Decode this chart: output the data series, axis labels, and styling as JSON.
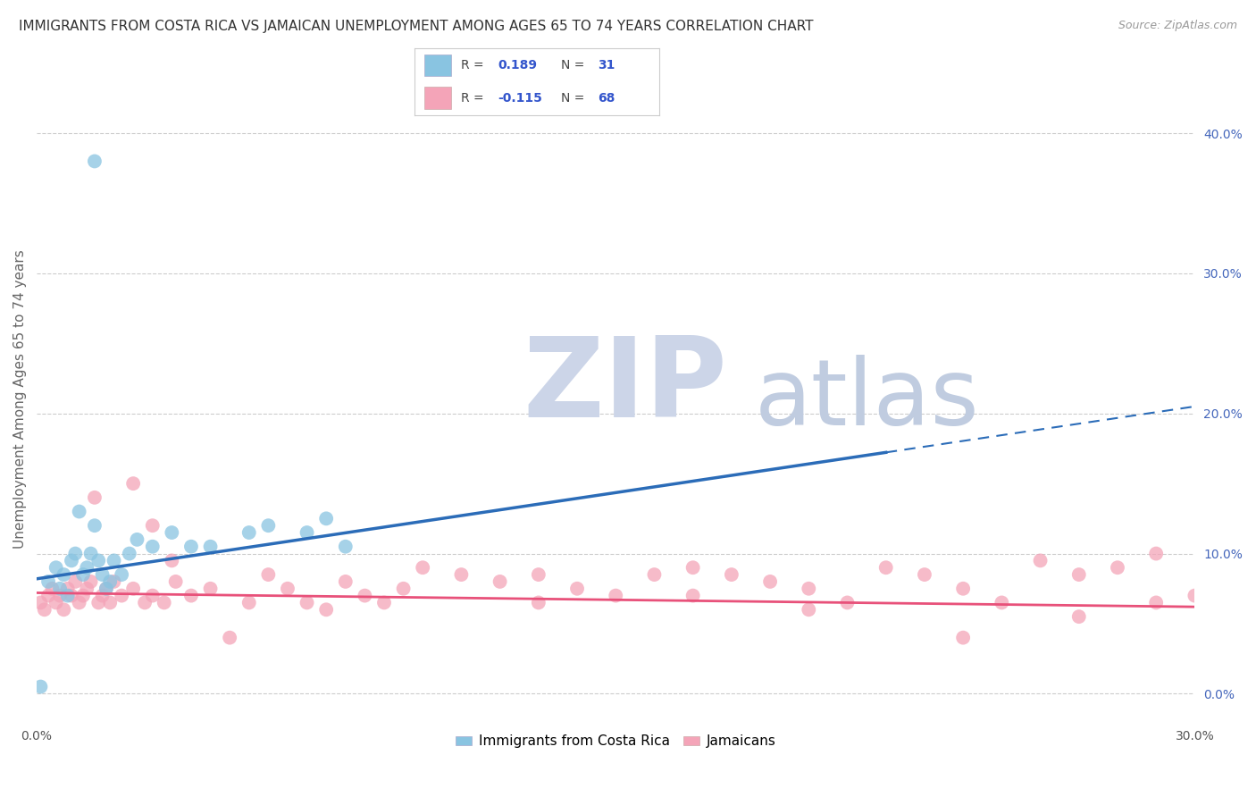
{
  "title": "IMMIGRANTS FROM COSTA RICA VS JAMAICAN UNEMPLOYMENT AMONG AGES 65 TO 74 YEARS CORRELATION CHART",
  "source": "Source: ZipAtlas.com",
  "ylabel": "Unemployment Among Ages 65 to 74 years",
  "xlim": [
    0.0,
    0.3
  ],
  "ylim": [
    -0.02,
    0.44
  ],
  "xtick_positions": [
    0.0,
    0.3
  ],
  "xtick_labels": [
    "0.0%",
    "30.0%"
  ],
  "ytick_positions": [
    0.0,
    0.1,
    0.2,
    0.3,
    0.4
  ],
  "ytick_labels_right": [
    "0.0%",
    "10.0%",
    "20.0%",
    "30.0%",
    "40.0%"
  ],
  "legend_labels": [
    "Immigrants from Costa Rica",
    "Jamaicans"
  ],
  "blue_color": "#89c4e1",
  "pink_color": "#f4a4b8",
  "blue_line_color": "#2b6cb8",
  "pink_line_color": "#e8517a",
  "blue_line_solid_end": 0.22,
  "blue_line_dashed_start": 0.22,
  "blue_scatter_x": [
    0.001,
    0.003,
    0.005,
    0.006,
    0.007,
    0.008,
    0.009,
    0.01,
    0.011,
    0.012,
    0.013,
    0.014,
    0.015,
    0.016,
    0.017,
    0.018,
    0.019,
    0.02,
    0.022,
    0.024,
    0.026,
    0.03,
    0.035,
    0.04,
    0.045,
    0.055,
    0.06,
    0.07,
    0.075,
    0.08,
    0.015
  ],
  "blue_scatter_y": [
    0.005,
    0.08,
    0.09,
    0.075,
    0.085,
    0.07,
    0.095,
    0.1,
    0.13,
    0.085,
    0.09,
    0.1,
    0.12,
    0.095,
    0.085,
    0.075,
    0.08,
    0.095,
    0.085,
    0.1,
    0.11,
    0.105,
    0.115,
    0.105,
    0.105,
    0.115,
    0.12,
    0.115,
    0.125,
    0.105,
    0.38
  ],
  "pink_scatter_x": [
    0.001,
    0.002,
    0.003,
    0.004,
    0.005,
    0.006,
    0.007,
    0.008,
    0.009,
    0.01,
    0.011,
    0.012,
    0.013,
    0.014,
    0.015,
    0.016,
    0.017,
    0.018,
    0.019,
    0.02,
    0.022,
    0.025,
    0.028,
    0.03,
    0.033,
    0.036,
    0.04,
    0.045,
    0.05,
    0.055,
    0.06,
    0.065,
    0.07,
    0.075,
    0.08,
    0.085,
    0.09,
    0.095,
    0.1,
    0.11,
    0.12,
    0.13,
    0.14,
    0.15,
    0.16,
    0.17,
    0.18,
    0.19,
    0.2,
    0.21,
    0.22,
    0.23,
    0.24,
    0.25,
    0.26,
    0.27,
    0.28,
    0.29,
    0.3,
    0.025,
    0.03,
    0.035,
    0.13,
    0.17,
    0.2,
    0.24,
    0.27,
    0.29
  ],
  "pink_scatter_y": [
    0.065,
    0.06,
    0.07,
    0.075,
    0.065,
    0.07,
    0.06,
    0.075,
    0.07,
    0.08,
    0.065,
    0.07,
    0.075,
    0.08,
    0.14,
    0.065,
    0.07,
    0.075,
    0.065,
    0.08,
    0.07,
    0.075,
    0.065,
    0.07,
    0.065,
    0.08,
    0.07,
    0.075,
    0.04,
    0.065,
    0.085,
    0.075,
    0.065,
    0.06,
    0.08,
    0.07,
    0.065,
    0.075,
    0.09,
    0.085,
    0.08,
    0.065,
    0.075,
    0.07,
    0.085,
    0.07,
    0.085,
    0.08,
    0.075,
    0.065,
    0.09,
    0.085,
    0.075,
    0.065,
    0.095,
    0.085,
    0.09,
    0.1,
    0.07,
    0.15,
    0.12,
    0.095,
    0.085,
    0.09,
    0.06,
    0.04,
    0.055,
    0.065
  ],
  "watermark_zip": "ZIP",
  "watermark_atlas": "atlas",
  "watermark_color_zip": "#c8d4e8",
  "watermark_color_atlas": "#c8cee0",
  "background_color": "#ffffff",
  "grid_color": "#cccccc",
  "title_fontsize": 11,
  "axis_label_fontsize": 11,
  "tick_fontsize": 10,
  "right_tick_color": "#4466bb"
}
